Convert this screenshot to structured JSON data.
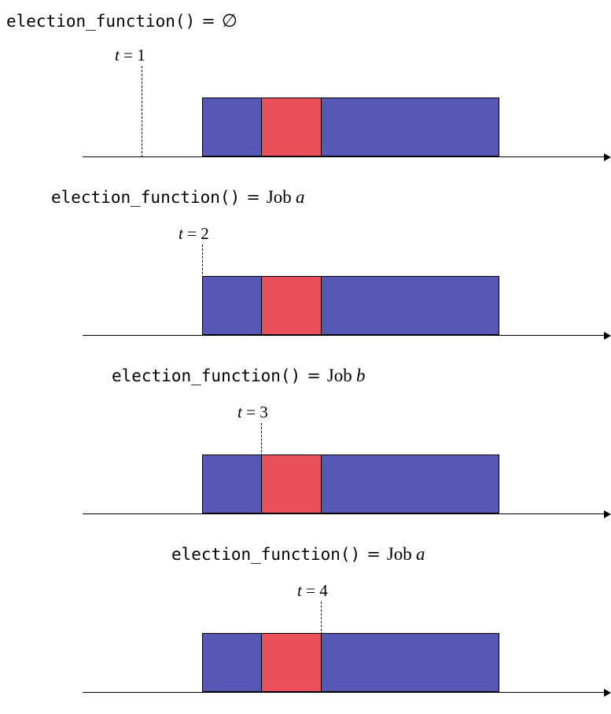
{
  "colors": {
    "job_a": "#5757b6",
    "job_b": "#e9505a",
    "line": "#000000"
  },
  "panels": [
    {
      "function_call": "election_function()",
      "equals": "=",
      "result_text": "∅",
      "result_var": "",
      "t_var": "t",
      "t_eq": "=",
      "t_value": "1",
      "time_step": 1
    },
    {
      "function_call": "election_function()",
      "equals": "=",
      "result_text": "Job",
      "result_var": "a",
      "t_var": "t",
      "t_eq": "=",
      "t_value": "2",
      "time_step": 2
    },
    {
      "function_call": "election_function()",
      "equals": "=",
      "result_text": "Job",
      "result_var": "b",
      "t_var": "t",
      "t_eq": "=",
      "t_value": "3",
      "time_step": 3
    },
    {
      "function_call": "election_function()",
      "equals": "=",
      "result_text": "Job",
      "result_var": "a",
      "t_var": "t",
      "t_eq": "=",
      "t_value": "4",
      "time_step": 4
    }
  ],
  "timeline": [
    {
      "job": "a",
      "start": 2,
      "end": 3
    },
    {
      "job": "b",
      "start": 3,
      "end": 4
    },
    {
      "job": "a",
      "start": 4,
      "end": 7
    }
  ]
}
